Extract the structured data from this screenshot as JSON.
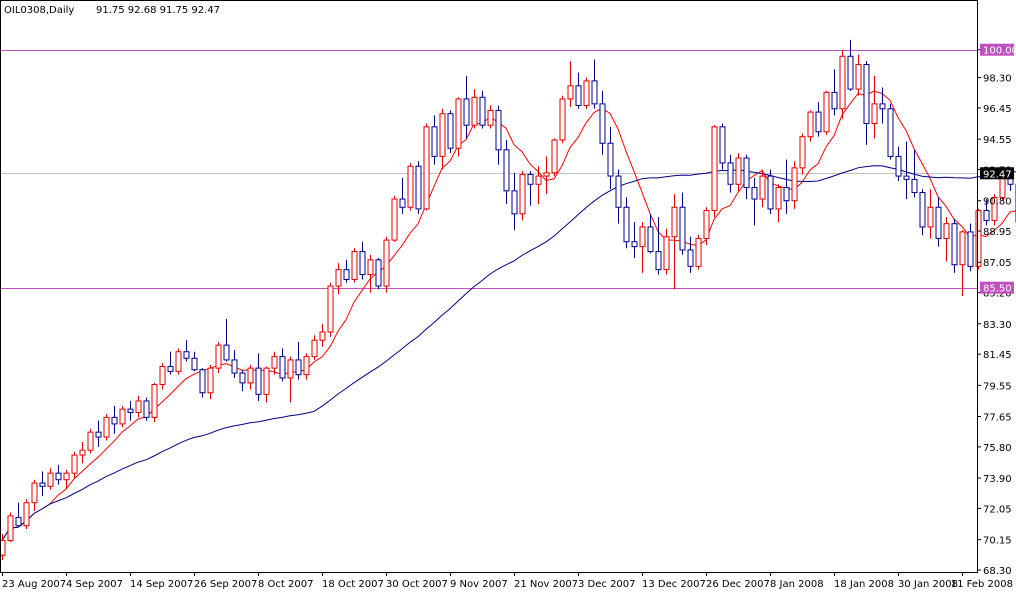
{
  "header": {
    "symbol_timeframe": "OIL0308,Daily",
    "ohlc_values": "91.75 92.68 91.75 92.47"
  },
  "colors": {
    "background": "#ffffff",
    "axis": "#000000",
    "bull_candle": "#e00000",
    "bear_candle": "#00008b",
    "fast_ma": "#ff0000",
    "slow_ma": "#00008b",
    "level_line": "#c050c0",
    "level_label_bg": "#c050c0",
    "current_line": "#c0c0c0",
    "current_label_bg": "#000000"
  },
  "chart_data": {
    "type": "candlestick",
    "title": "OIL0308,Daily",
    "ylim": [
      68.3,
      101.2
    ],
    "y_tick_labels": [
      "100.00",
      "98.30",
      "96.45",
      "94.55",
      "92.70",
      "90.80",
      "88.95",
      "87.05",
      "85.20",
      "83.30",
      "81.45",
      "79.55",
      "77.65",
      "75.80",
      "73.90",
      "72.05",
      "70.15",
      "68.30"
    ],
    "x_tick_labels": [
      {
        "label": "23 Aug 2007",
        "index": 0
      },
      {
        "label": "4 Sep 2007",
        "index": 8
      },
      {
        "label": "14 Sep 2007",
        "index": 16
      },
      {
        "label": "26 Sep 2007",
        "index": 24
      },
      {
        "label": "8 Oct 2007",
        "index": 32
      },
      {
        "label": "18 Oct 2007",
        "index": 40
      },
      {
        "label": "30 Oct 2007",
        "index": 48
      },
      {
        "label": "9 Nov 2007",
        "index": 56
      },
      {
        "label": "21 Nov 2007",
        "index": 64
      },
      {
        "label": "3 Dec 2007",
        "index": 72
      },
      {
        "label": "13 Dec 2007",
        "index": 80
      },
      {
        "label": "26 Dec 2007",
        "index": 88
      },
      {
        "label": "8 Jan 2008",
        "index": 96
      },
      {
        "label": "18 Jan 2008",
        "index": 104
      },
      {
        "label": "30 Jan 2008",
        "index": 112
      },
      {
        "label": "11 Feb 2008",
        "index": 120
      }
    ],
    "levels": [
      {
        "value": 100.0,
        "label": "100.00"
      },
      {
        "value": 85.5,
        "label": "85.50"
      }
    ],
    "current_price": {
      "value": 92.47,
      "label": "92.47"
    },
    "candles": [
      [
        69.2,
        70.5,
        68.9,
        70.1
      ],
      [
        70.1,
        71.8,
        70.0,
        71.6
      ],
      [
        71.5,
        72.4,
        71.0,
        71.0
      ],
      [
        71.0,
        72.6,
        70.8,
        72.4
      ],
      [
        72.4,
        73.8,
        71.9,
        73.6
      ],
      [
        73.6,
        74.3,
        72.8,
        73.4
      ],
      [
        73.4,
        74.5,
        73.2,
        74.2
      ],
      [
        74.2,
        74.7,
        73.5,
        73.8
      ],
      [
        73.8,
        74.4,
        73.3,
        74.2
      ],
      [
        74.2,
        75.5,
        73.9,
        75.3
      ],
      [
        75.3,
        76.1,
        74.8,
        75.6
      ],
      [
        75.6,
        76.9,
        75.4,
        76.7
      ],
      [
        76.7,
        77.4,
        75.8,
        76.4
      ],
      [
        76.4,
        77.8,
        76.2,
        77.6
      ],
      [
        77.6,
        78.3,
        76.6,
        77.2
      ],
      [
        77.2,
        78.3,
        77.0,
        78.1
      ],
      [
        78.1,
        78.6,
        77.4,
        77.9
      ],
      [
        77.9,
        78.9,
        77.6,
        78.6
      ],
      [
        78.6,
        78.8,
        77.4,
        77.6
      ],
      [
        77.6,
        79.7,
        77.3,
        79.6
      ],
      [
        79.6,
        80.9,
        79.3,
        80.7
      ],
      [
        80.7,
        81.6,
        80.2,
        80.4
      ],
      [
        80.4,
        81.8,
        80.2,
        81.6
      ],
      [
        81.6,
        82.3,
        81.0,
        81.2
      ],
      [
        81.2,
        81.6,
        80.4,
        80.5
      ],
      [
        80.5,
        80.6,
        78.8,
        79.1
      ],
      [
        79.1,
        80.8,
        78.7,
        80.6
      ],
      [
        80.6,
        82.2,
        80.3,
        82.0
      ],
      [
        82.0,
        83.6,
        81.0,
        81.1
      ],
      [
        81.1,
        81.7,
        80.0,
        80.3
      ],
      [
        80.3,
        80.5,
        79.2,
        79.7
      ],
      [
        79.7,
        80.8,
        79.3,
        80.6
      ],
      [
        80.6,
        81.5,
        78.6,
        79.0
      ],
      [
        79.0,
        80.7,
        78.5,
        80.6
      ],
      [
        80.6,
        81.6,
        80.2,
        81.3
      ],
      [
        81.3,
        81.8,
        79.8,
        80.0
      ],
      [
        80.0,
        81.3,
        78.5,
        81.1
      ],
      [
        81.1,
        82.2,
        79.9,
        80.2
      ],
      [
        80.2,
        81.5,
        79.9,
        81.3
      ],
      [
        81.3,
        82.6,
        81.1,
        82.3
      ],
      [
        82.3,
        83.3,
        81.9,
        82.8
      ],
      [
        82.8,
        85.8,
        82.5,
        85.6
      ],
      [
        85.6,
        87.0,
        85.1,
        86.6
      ],
      [
        86.6,
        87.2,
        85.8,
        86.0
      ],
      [
        86.0,
        87.9,
        85.8,
        87.7
      ],
      [
        87.7,
        88.3,
        86.0,
        86.3
      ],
      [
        86.3,
        87.5,
        85.2,
        87.2
      ],
      [
        87.2,
        87.3,
        85.4,
        85.6
      ],
      [
        85.6,
        88.6,
        85.2,
        88.4
      ],
      [
        88.4,
        91.1,
        88.3,
        90.9
      ],
      [
        90.9,
        92.2,
        90.0,
        90.4
      ],
      [
        90.4,
        93.1,
        90.2,
        92.9
      ],
      [
        92.9,
        93.2,
        90.0,
        90.3
      ],
      [
        90.3,
        95.5,
        90.2,
        95.3
      ],
      [
        95.3,
        96.0,
        93.0,
        93.5
      ],
      [
        93.5,
        96.4,
        92.7,
        96.1
      ],
      [
        96.1,
        96.3,
        93.7,
        94.0
      ],
      [
        94.0,
        97.1,
        93.5,
        97.0
      ],
      [
        97.0,
        98.4,
        94.6,
        95.4
      ],
      [
        95.4,
        97.6,
        95.2,
        97.1
      ],
      [
        97.1,
        97.5,
        95.2,
        95.4
      ],
      [
        95.4,
        96.6,
        95.2,
        96.3
      ],
      [
        96.3,
        96.6,
        93.0,
        93.9
      ],
      [
        93.9,
        94.5,
        90.6,
        91.4
      ],
      [
        91.4,
        92.5,
        89.0,
        90.0
      ],
      [
        90.0,
        92.6,
        89.6,
        92.4
      ],
      [
        92.4,
        92.6,
        90.5,
        91.8
      ],
      [
        91.8,
        92.9,
        90.6,
        92.3
      ],
      [
        92.3,
        93.5,
        91.2,
        92.5
      ],
      [
        92.5,
        94.6,
        92.3,
        94.5
      ],
      [
        94.5,
        97.2,
        94.3,
        97.0
      ],
      [
        97.0,
        99.3,
        96.5,
        97.8
      ],
      [
        97.8,
        98.6,
        96.4,
        96.6
      ],
      [
        96.6,
        98.3,
        96.4,
        98.1
      ],
      [
        98.1,
        99.4,
        96.4,
        96.7
      ],
      [
        96.7,
        97.5,
        93.6,
        94.3
      ],
      [
        94.3,
        95.3,
        91.5,
        92.3
      ],
      [
        92.3,
        92.7,
        89.4,
        90.4
      ],
      [
        90.4,
        91.0,
        87.9,
        88.3
      ],
      [
        88.3,
        89.5,
        87.3,
        88.0
      ],
      [
        88.0,
        89.5,
        86.4,
        89.2
      ],
      [
        89.2,
        90.0,
        87.6,
        87.7
      ],
      [
        87.7,
        89.8,
        86.3,
        86.6
      ],
      [
        86.6,
        89.1,
        86.3,
        88.6
      ],
      [
        88.6,
        91.2,
        85.4,
        90.4
      ],
      [
        90.4,
        91.3,
        87.5,
        87.8
      ],
      [
        87.8,
        88.6,
        86.4,
        86.8
      ],
      [
        86.8,
        88.7,
        86.6,
        88.5
      ],
      [
        88.5,
        90.4,
        88.1,
        90.2
      ],
      [
        90.2,
        95.4,
        89.8,
        95.3
      ],
      [
        95.3,
        95.5,
        92.7,
        93.1
      ],
      [
        93.1,
        93.6,
        91.3,
        91.8
      ],
      [
        91.8,
        93.7,
        91.4,
        93.4
      ],
      [
        93.4,
        93.6,
        90.9,
        91.6
      ],
      [
        91.6,
        92.2,
        89.3,
        90.9
      ],
      [
        90.9,
        92.7,
        90.4,
        92.3
      ],
      [
        92.3,
        92.7,
        90.0,
        90.3
      ],
      [
        90.3,
        91.8,
        89.5,
        91.6
      ],
      [
        91.6,
        93.3,
        90.0,
        90.8
      ],
      [
        90.8,
        93.2,
        90.3,
        92.8
      ],
      [
        92.8,
        94.9,
        92.4,
        94.7
      ],
      [
        94.7,
        96.3,
        94.4,
        96.2
      ],
      [
        96.2,
        96.8,
        94.7,
        95.0
      ],
      [
        95.0,
        97.5,
        94.8,
        97.4
      ],
      [
        97.4,
        98.8,
        96.0,
        96.4
      ],
      [
        96.4,
        100.0,
        95.8,
        99.6
      ],
      [
        99.6,
        100.6,
        97.5,
        97.6
      ],
      [
        97.6,
        99.7,
        97.2,
        99.1
      ],
      [
        99.1,
        99.3,
        94.2,
        95.5
      ],
      [
        95.5,
        98.4,
        94.6,
        96.7
      ],
      [
        96.7,
        97.7,
        95.5,
        96.4
      ],
      [
        96.4,
        96.7,
        93.3,
        93.5
      ],
      [
        93.5,
        94.1,
        92.0,
        92.3
      ],
      [
        92.3,
        94.4,
        90.9,
        92.1
      ],
      [
        92.1,
        93.9,
        91.0,
        91.3
      ],
      [
        91.3,
        91.5,
        88.7,
        89.2
      ],
      [
        89.2,
        91.5,
        88.5,
        90.4
      ],
      [
        90.4,
        91.0,
        88.0,
        88.5
      ],
      [
        88.5,
        89.8,
        87.1,
        89.4
      ],
      [
        89.4,
        89.7,
        86.4,
        86.9
      ],
      [
        86.9,
        89.0,
        85.0,
        88.9
      ],
      [
        88.9,
        89.4,
        86.5,
        86.8
      ],
      [
        86.8,
        90.3,
        86.6,
        90.2
      ],
      [
        90.2,
        90.9,
        89.3,
        89.6
      ],
      [
        89.6,
        91.2,
        89.3,
        91.0
      ],
      [
        91.0,
        92.7,
        90.8,
        92.5
      ],
      [
        92.5,
        92.8,
        91.4,
        91.8
      ],
      [
        91.8,
        92.3,
        88.9,
        89.5
      ],
      [
        89.5,
        90.5,
        88.5,
        88.9
      ],
      [
        88.9,
        89.4,
        86.7,
        87.1
      ],
      [
        87.1,
        88.6,
        86.1,
        88.4
      ],
      [
        88.4,
        89.3,
        86.0,
        86.6
      ],
      [
        86.6,
        88.9,
        86.4,
        88.7
      ],
      [
        88.7,
        91.8,
        88.3,
        91.7
      ],
      [
        91.75,
        92.68,
        91.75,
        92.47
      ]
    ]
  }
}
